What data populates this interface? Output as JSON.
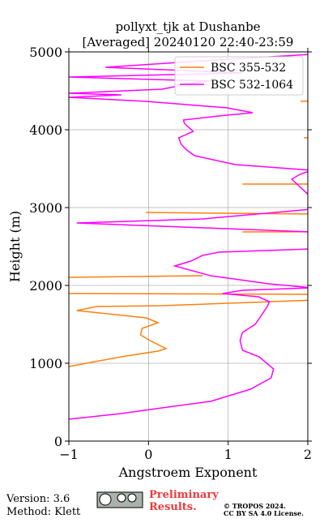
{
  "chart_data": {
    "type": "line",
    "title": "pollyxt_tjk at Dushanbe",
    "subtitle": "[Averaged] 20240120 22:40-23:59",
    "xlabel": "Angstroem Exponent",
    "ylabel": "Height (m)",
    "xlim": [
      -1,
      2
    ],
    "xticks": [
      {
        "value": -1,
        "label": "−1"
      },
      0,
      1,
      2
    ],
    "ylim": [
      0,
      5000
    ],
    "yticks": [
      0,
      1000,
      2000,
      3000,
      4000,
      5000
    ],
    "grid": true,
    "legend": "upper right",
    "series": [
      {
        "name": "BSC 355-532",
        "color": "#ff7f0e",
        "y": [
          958,
          1083,
          1156,
          1188,
          1292,
          1365,
          1448,
          1521,
          1583,
          1677,
          1729,
          1740,
          1813,
          1885,
          1896,
          null,
          2104,
          2125,
          null,
          2688,
          2690,
          null,
          2917,
          2938,
          null,
          3302,
          3302,
          null,
          3896,
          3900,
          null,
          4365,
          4370
        ],
        "values": [
          -1,
          -0.34,
          0.12,
          0.22,
          0.02,
          -0.1,
          -0.08,
          0.12,
          -0.03,
          -0.9,
          -0.65,
          0.17,
          2.1,
          2.1,
          -1,
          null,
          -1,
          0.68,
          null,
          1.18,
          2.1,
          null,
          2.1,
          -0.03,
          null,
          1.18,
          2.1,
          null,
          1.95,
          2.1,
          null,
          1.91,
          2.1
        ]
      },
      {
        "name": "BSC 532-1064",
        "color": "#ff00ff",
        "y": [
          281,
          354,
          406,
          510,
          667,
          812,
          927,
          1083,
          1167,
          1292,
          1396,
          1500,
          1604,
          1729,
          1792,
          1854,
          1896,
          1938,
          1969,
          2021,
          2125,
          2250,
          2313,
          2385,
          2427,
          2469,
          2688,
          2802,
          2854,
          2938,
          2979,
          3125,
          3365,
          3427,
          3479,
          3552,
          3667,
          3740,
          3813,
          3896,
          3979,
          4083,
          4125,
          4177,
          4219,
          4281,
          4365,
          4417,
          4448,
          4469,
          4521,
          4604,
          4625,
          4677,
          4729,
          4802,
          4885,
          4969
        ],
        "values": [
          -1,
          -0.34,
          0.02,
          0.78,
          1.28,
          1.54,
          1.57,
          1.39,
          1.18,
          1.15,
          1.18,
          1.34,
          1.41,
          1.49,
          1.52,
          1.38,
          0.93,
          1.18,
          2.05,
          1.51,
          0.78,
          0.33,
          0.53,
          0.68,
          0.88,
          2.05,
          2.05,
          -0.9,
          0.68,
          1.59,
          2.05,
          2.05,
          1.8,
          1.9,
          2.05,
          1.09,
          0.58,
          0.48,
          0.41,
          0.38,
          0.56,
          0.45,
          0.44,
          0.88,
          1.31,
          0.99,
          -0.03,
          -1,
          -0.34,
          -1,
          0.17,
          0.58,
          0.78,
          -1,
          1.18,
          -0.54,
          0.68,
          2.05
        ]
      }
    ]
  },
  "footer": {
    "version": "Version: 3.6",
    "method": "Method: Klett",
    "preliminary": [
      "Preliminary",
      "Results."
    ],
    "copyright": [
      "© TROPOS 2024.",
      "CC BY SA 4.0 License."
    ]
  }
}
